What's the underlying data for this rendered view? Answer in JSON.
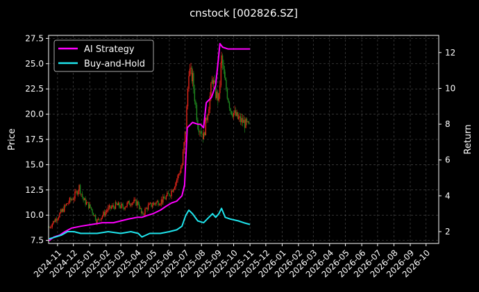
{
  "chart_data": {
    "type": "line",
    "title": "cnstock [002826.SZ]",
    "ylabel_left": "Price",
    "ylabel_right": "Return",
    "xlabel": "",
    "ylim_left": [
      7.2,
      27.8
    ],
    "ylim_right": [
      1.34,
      12.96
    ],
    "xlim": [
      "2024-10-15",
      "2026-10-25"
    ],
    "grid": true,
    "legend_position": "top-left",
    "background": "#000000",
    "x_ticks": [
      "2024-11",
      "2024-12",
      "2025-01",
      "2025-02",
      "2025-03",
      "2025-04",
      "2025-05",
      "2025-06",
      "2025-07",
      "2025-08",
      "2025-09",
      "2025-10",
      "2025-11",
      "2025-12",
      "2026-01",
      "2026-02",
      "2026-03",
      "2026-04",
      "2026-05",
      "2026-06",
      "2026-07",
      "2026-08",
      "2026-09",
      "2026-10"
    ],
    "y_ticks_left": [
      "7.5",
      "10.0",
      "12.5",
      "15.0",
      "17.5",
      "20.0",
      "22.5",
      "25.0",
      "27.5"
    ],
    "y_ticks_right": [
      "2",
      "4",
      "6",
      "8",
      "10",
      "12"
    ],
    "candle_colors": {
      "up": "#e8251a",
      "down": "#1f8a1f"
    },
    "price_series": {
      "dates": [
        "2024-10-16",
        "2024-10-28",
        "2024-11-08",
        "2024-11-20",
        "2024-12-02",
        "2024-12-12",
        "2024-12-20",
        "2025-01-02",
        "2025-01-15",
        "2025-02-05",
        "2025-02-20",
        "2025-03-05",
        "2025-03-20",
        "2025-04-03",
        "2025-04-10",
        "2025-04-20",
        "2025-05-05",
        "2025-05-20",
        "2025-06-03",
        "2025-06-15",
        "2025-06-25",
        "2025-07-02",
        "2025-07-08",
        "2025-07-15",
        "2025-07-25",
        "2025-08-05",
        "2025-08-15",
        "2025-08-22",
        "2025-08-28",
        "2025-09-03",
        "2025-09-08",
        "2025-09-15",
        "2025-09-25",
        "2025-10-10",
        "2025-10-20",
        "2025-11-01"
      ],
      "close": [
        8.8,
        9.6,
        10.3,
        11.2,
        11.8,
        12.8,
        11.5,
        10.8,
        9.4,
        10.6,
        11.0,
        10.8,
        11.3,
        11.2,
        10.0,
        10.8,
        11.2,
        11.5,
        12.2,
        13.5,
        15.0,
        18.5,
        24.5,
        23.5,
        19.0,
        17.8,
        21.0,
        23.5,
        22.0,
        21.5,
        25.5,
        23.0,
        20.5,
        19.5,
        19.2,
        18.6
      ]
    },
    "series": [
      {
        "name": "AI Strategy",
        "color": "#ff00ff",
        "axis": "right",
        "x": [
          "2024-10-16",
          "2024-10-25",
          "2024-11-05",
          "2024-11-15",
          "2024-11-28",
          "2024-12-15",
          "2025-01-05",
          "2025-01-25",
          "2025-02-15",
          "2025-03-01",
          "2025-03-15",
          "2025-04-01",
          "2025-04-10",
          "2025-04-20",
          "2025-05-01",
          "2025-05-15",
          "2025-05-25",
          "2025-06-05",
          "2025-06-15",
          "2025-06-25",
          "2025-06-30",
          "2025-07-05",
          "2025-07-15",
          "2025-07-25",
          "2025-07-30",
          "2025-08-05",
          "2025-08-10",
          "2025-08-20",
          "2025-08-28",
          "2025-09-02",
          "2025-09-05",
          "2025-09-10",
          "2025-09-20",
          "2025-10-01",
          "2025-10-15",
          "2025-11-01"
        ],
        "y": [
          1.5,
          1.7,
          1.8,
          2.0,
          2.2,
          2.3,
          2.4,
          2.5,
          2.5,
          2.6,
          2.7,
          2.8,
          2.8,
          2.9,
          3.0,
          3.2,
          3.4,
          3.6,
          3.7,
          4.0,
          4.6,
          7.8,
          8.1,
          8.0,
          8.0,
          7.8,
          9.2,
          9.5,
          10.2,
          11.6,
          12.5,
          12.3,
          12.2,
          12.2,
          12.2,
          12.2
        ]
      },
      {
        "name": "Buy-and-Hold",
        "color": "#1fe6ee",
        "axis": "right",
        "x": [
          "2024-10-16",
          "2024-10-28",
          "2024-11-08",
          "2024-11-20",
          "2024-12-02",
          "2024-12-15",
          "2024-12-25",
          "2025-01-15",
          "2025-02-05",
          "2025-03-01",
          "2025-03-20",
          "2025-04-03",
          "2025-04-10",
          "2025-04-25",
          "2025-05-15",
          "2025-06-01",
          "2025-06-15",
          "2025-06-25",
          "2025-07-02",
          "2025-07-08",
          "2025-07-15",
          "2025-07-25",
          "2025-08-05",
          "2025-08-15",
          "2025-08-22",
          "2025-08-28",
          "2025-09-03",
          "2025-09-08",
          "2025-09-15",
          "2025-09-25",
          "2025-10-10",
          "2025-10-20",
          "2025-11-01"
        ],
        "y": [
          1.6,
          1.7,
          1.8,
          2.0,
          2.0,
          1.9,
          1.9,
          1.9,
          2.0,
          1.9,
          2.0,
          1.9,
          1.7,
          1.9,
          1.9,
          2.0,
          2.1,
          2.3,
          2.9,
          3.2,
          3.0,
          2.6,
          2.5,
          2.8,
          3.0,
          2.8,
          3.0,
          3.3,
          2.8,
          2.7,
          2.6,
          2.5,
          2.4
        ]
      }
    ]
  }
}
